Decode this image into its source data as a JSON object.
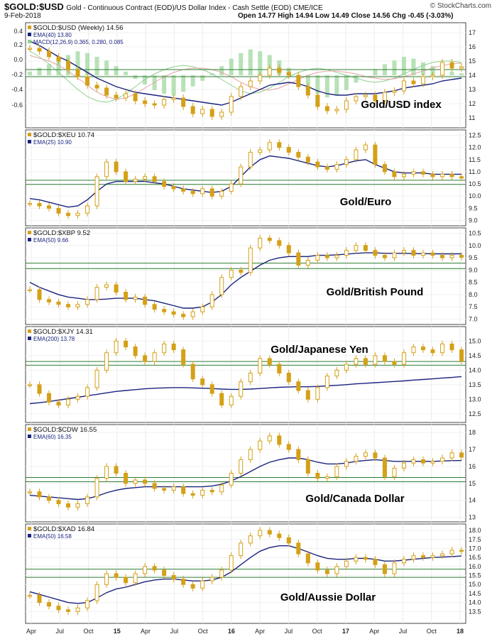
{
  "header": {
    "symbol": "$GOLD:$USD",
    "description": "Gold - Continuous Contract (EOD)/US Dollar Index - Cash Settle (EOD)  CME/ICE",
    "date": "9-Feb-2018",
    "ohlc": "Open 14.77  High 14.94  Low 14.49  Close 14.56  Chg -0.45 (-3.03%)",
    "credit": "© StockCharts.com"
  },
  "colors": {
    "price": "#d4a017",
    "ema": "#1a237e",
    "support": "#2e7d32",
    "macd_hist": "#9fd89f",
    "macd_line": "#8fcf8f",
    "macd_signal": "#e6a3a3"
  },
  "x_axis_labels": [
    "Apr",
    "Jul",
    "Oct",
    "15",
    "Apr",
    "Jul",
    "Oct",
    "16",
    "Apr",
    "Jul",
    "Oct",
    "17",
    "Apr",
    "Jul",
    "Oct",
    "18"
  ],
  "chart_data": [
    {
      "type": "line",
      "title": "Gold/USD index",
      "legend": [
        "$GOLD:$USD (Weekly) 14.56",
        "EMA(40) 13.80",
        "MACD(12,26,9) 0.365, 0.280, 0.085"
      ],
      "ylim": [
        10.5,
        17.5
      ],
      "y_ticks": [
        {
          "v": 17,
          "t": "17"
        },
        {
          "v": 16,
          "t": "16"
        },
        {
          "v": 15,
          "t": "15"
        },
        {
          "v": 14,
          "t": "14"
        },
        {
          "v": 13,
          "t": "13"
        },
        {
          "v": 12,
          "t": "12"
        },
        {
          "v": 11,
          "t": "11"
        }
      ],
      "left_ticks": [
        "0.4",
        "0.2",
        "0.0",
        "-0.2",
        "-0.4",
        "-0.6"
      ],
      "support": [
        14.4,
        13.9
      ],
      "price": [
        15.9,
        15.7,
        15.3,
        15.0,
        14.4,
        13.9,
        13.3,
        13.1,
        12.6,
        12.4,
        12.7,
        12.2,
        12.0,
        11.9,
        12.3,
        12.4,
        11.8,
        11.3,
        11.6,
        11.1,
        11.4,
        12.5,
        13.2,
        13.6,
        14.0,
        14.5,
        14.2,
        14.0,
        13.2,
        12.6,
        11.8,
        11.5,
        11.6,
        12.2,
        12.5,
        12.6,
        12.2,
        12.8,
        12.9,
        13.6,
        13.4,
        13.9,
        14.0,
        14.9,
        14.5,
        14.6
      ],
      "ema": [
        16.4,
        16.1,
        15.7,
        15.3,
        15.0,
        14.6,
        14.2,
        13.8,
        13.5,
        13.2,
        13.0,
        12.8,
        12.7,
        12.6,
        12.5,
        12.4,
        12.3,
        12.2,
        12.1,
        12.0,
        11.9,
        12.1,
        12.4,
        12.7,
        13.0,
        13.3,
        13.4,
        13.5,
        13.4,
        13.2,
        12.9,
        12.7,
        12.6,
        12.6,
        12.7,
        12.7,
        12.7,
        12.8,
        12.9,
        13.1,
        13.2,
        13.3,
        13.4,
        13.6,
        13.7,
        13.8
      ]
    },
    {
      "type": "line",
      "title": "Gold/Euro",
      "legend": [
        "$GOLD:$XEU 10.74",
        "EMA(25) 10.90"
      ],
      "ylim": [
        8.9,
        12.6
      ],
      "y_ticks": [
        {
          "v": 12.5,
          "t": "12.5"
        },
        {
          "v": 12.0,
          "t": "12.0"
        },
        {
          "v": 11.5,
          "t": "11.5"
        },
        {
          "v": 11.0,
          "t": "11.0"
        },
        {
          "v": 10.5,
          "t": "10.5"
        },
        {
          "v": 10.0,
          "t": "10.0"
        },
        {
          "v": 9.5,
          "t": "9.5"
        },
        {
          "v": 9.0,
          "t": "9.0"
        }
      ],
      "support": [
        10.65,
        10.48
      ],
      "price": [
        9.7,
        9.6,
        9.5,
        9.3,
        9.2,
        9.3,
        9.6,
        10.8,
        11.4,
        11.0,
        10.6,
        10.7,
        10.8,
        10.6,
        10.4,
        10.3,
        10.2,
        10.1,
        10.3,
        10.0,
        10.2,
        10.5,
        11.2,
        11.8,
        11.9,
        12.2,
        12.0,
        11.8,
        11.6,
        11.4,
        11.2,
        11.1,
        11.3,
        11.5,
        11.9,
        12.1,
        11.3,
        11.0,
        10.8,
        10.9,
        11.0,
        10.9,
        10.8,
        10.9,
        10.8,
        10.74
      ],
      "ema": [
        9.9,
        9.85,
        9.75,
        9.65,
        9.55,
        9.6,
        9.85,
        10.2,
        10.5,
        10.6,
        10.6,
        10.6,
        10.6,
        10.55,
        10.5,
        10.4,
        10.3,
        10.25,
        10.2,
        10.15,
        10.2,
        10.4,
        10.8,
        11.2,
        11.5,
        11.65,
        11.6,
        11.55,
        11.45,
        11.35,
        11.25,
        11.2,
        11.25,
        11.35,
        11.45,
        11.5,
        11.3,
        11.15,
        11.0,
        10.95,
        10.95,
        10.95,
        10.9,
        10.9,
        10.9,
        10.9
      ]
    },
    {
      "type": "line",
      "title": "Gold/British Pound",
      "legend": [
        "$GOLD:$XBP 9.52",
        "EMA(50) 9.66"
      ],
      "ylim": [
        6.9,
        10.6
      ],
      "y_ticks": [
        {
          "v": 10.5,
          "t": "10.5"
        },
        {
          "v": 10.0,
          "t": "10.0"
        },
        {
          "v": 9.5,
          "t": "9.5"
        },
        {
          "v": 9.0,
          "t": "9.0"
        },
        {
          "v": 8.5,
          "t": "8.5"
        },
        {
          "v": 8.0,
          "t": "8.0"
        },
        {
          "v": 7.5,
          "t": "7.5"
        },
        {
          "v": 7.0,
          "t": "7.0"
        }
      ],
      "support": [
        9.28,
        9.06
      ],
      "price": [
        8.2,
        7.8,
        7.7,
        7.6,
        7.5,
        7.6,
        7.8,
        8.3,
        8.4,
        8.1,
        7.8,
        7.9,
        7.6,
        7.4,
        7.3,
        7.2,
        7.1,
        7.3,
        7.5,
        8.0,
        8.7,
        9.0,
        8.9,
        9.9,
        10.3,
        10.2,
        10.0,
        9.7,
        9.2,
        9.4,
        9.6,
        9.5,
        9.6,
        9.8,
        10.0,
        9.8,
        9.6,
        9.5,
        9.7,
        9.8,
        9.6,
        9.7,
        9.6,
        9.5,
        9.6,
        9.52
      ],
      "ema": [
        8.5,
        8.3,
        8.15,
        8.0,
        7.9,
        7.85,
        7.8,
        7.8,
        7.82,
        7.85,
        7.85,
        7.85,
        7.8,
        7.75,
        7.65,
        7.55,
        7.45,
        7.45,
        7.5,
        7.7,
        8.0,
        8.4,
        8.7,
        8.95,
        9.2,
        9.4,
        9.5,
        9.55,
        9.55,
        9.55,
        9.6,
        9.6,
        9.62,
        9.65,
        9.68,
        9.7,
        9.7,
        9.68,
        9.68,
        9.68,
        9.67,
        9.67,
        9.66,
        9.66,
        9.66,
        9.66
      ]
    },
    {
      "type": "line",
      "title": "Gold/Japanese Yen",
      "legend": [
        "$GOLD:$XJY 14.31",
        "EMA(200) 13.78"
      ],
      "ylim": [
        12.3,
        15.4
      ],
      "y_ticks": [
        {
          "v": 15.0,
          "t": "15.0"
        },
        {
          "v": 14.5,
          "t": "14.5"
        },
        {
          "v": 14.0,
          "t": "14.0"
        },
        {
          "v": 13.5,
          "t": "13.5"
        },
        {
          "v": 13.0,
          "t": "13.0"
        },
        {
          "v": 12.5,
          "t": "12.5"
        }
      ],
      "support": [
        14.3,
        14.17
      ],
      "price": [
        13.5,
        13.2,
        12.9,
        12.8,
        13.0,
        13.1,
        13.4,
        14.0,
        14.6,
        15.0,
        14.8,
        14.5,
        14.3,
        14.6,
        14.9,
        14.7,
        14.2,
        13.7,
        13.5,
        13.2,
        12.8,
        13.1,
        13.6,
        13.9,
        14.4,
        14.2,
        13.9,
        13.6,
        13.3,
        13.0,
        13.4,
        13.8,
        14.0,
        14.2,
        14.4,
        14.2,
        14.5,
        14.3,
        14.2,
        14.6,
        14.8,
        14.7,
        14.6,
        14.9,
        14.7,
        14.31
      ],
      "ema": [
        12.85,
        12.88,
        12.92,
        12.97,
        13.02,
        13.07,
        13.12,
        13.17,
        13.22,
        13.27,
        13.3,
        13.33,
        13.36,
        13.38,
        13.39,
        13.4,
        13.4,
        13.39,
        13.38,
        13.37,
        13.35,
        13.34,
        13.34,
        13.35,
        13.37,
        13.39,
        13.41,
        13.42,
        13.43,
        13.43,
        13.44,
        13.46,
        13.48,
        13.5,
        13.53,
        13.55,
        13.57,
        13.59,
        13.61,
        13.63,
        13.66,
        13.68,
        13.7,
        13.73,
        13.75,
        13.78
      ]
    },
    {
      "type": "line",
      "title": "Gold/Canada Dollar",
      "legend": [
        "$GOLD:$CDW 16.55",
        "EMA(60) 16.35"
      ],
      "ylim": [
        12.9,
        18.3
      ],
      "y_ticks": [
        {
          "v": 18,
          "t": "18"
        },
        {
          "v": 17,
          "t": "17"
        },
        {
          "v": 16,
          "t": "16"
        },
        {
          "v": 15,
          "t": "15"
        },
        {
          "v": 14,
          "t": "14"
        },
        {
          "v": 13,
          "t": "13"
        }
      ],
      "support": [
        15.35,
        15.1
      ],
      "price": [
        14.5,
        14.2,
        14.0,
        13.8,
        13.6,
        13.8,
        14.2,
        15.3,
        16.0,
        15.6,
        15.0,
        15.2,
        15.0,
        14.7,
        14.6,
        14.8,
        14.4,
        14.3,
        14.6,
        14.5,
        14.9,
        15.6,
        16.4,
        17.0,
        17.5,
        17.8,
        17.3,
        17.0,
        16.4,
        15.6,
        15.3,
        15.4,
        16.0,
        16.3,
        16.6,
        16.8,
        16.5,
        15.4,
        15.9,
        16.2,
        16.4,
        16.2,
        16.3,
        16.5,
        16.8,
        16.55
      ],
      "ema": [
        14.3,
        14.25,
        14.2,
        14.15,
        14.1,
        14.05,
        14.1,
        14.25,
        14.45,
        14.6,
        14.7,
        14.75,
        14.8,
        14.8,
        14.8,
        14.8,
        14.8,
        14.8,
        14.8,
        14.85,
        14.95,
        15.15,
        15.4,
        15.7,
        16.0,
        16.25,
        16.4,
        16.5,
        16.5,
        16.4,
        16.25,
        16.15,
        16.15,
        16.2,
        16.3,
        16.35,
        16.4,
        16.35,
        16.3,
        16.3,
        16.3,
        16.3,
        16.3,
        16.32,
        16.34,
        16.35
      ]
    },
    {
      "type": "line",
      "title": "Gold/Aussie Dollar",
      "legend": [
        "$GOLD:$XAD 16.84",
        "EMA(50) 16.58"
      ],
      "ylim": [
        13.0,
        18.2
      ],
      "y_ticks": [
        {
          "v": 18.0,
          "t": "18.0"
        },
        {
          "v": 17.5,
          "t": "17.5"
        },
        {
          "v": 17.0,
          "t": "17.0"
        },
        {
          "v": 16.5,
          "t": "16.5"
        },
        {
          "v": 16.0,
          "t": "16.0"
        },
        {
          "v": 15.5,
          "t": "15.5"
        },
        {
          "v": 15.0,
          "t": "15.0"
        },
        {
          "v": 14.5,
          "t": "14.5"
        },
        {
          "v": 14.0,
          "t": "14.0"
        },
        {
          "v": 13.5,
          "t": "13.5"
        }
      ],
      "support": [
        15.85,
        15.4
      ],
      "price": [
        14.4,
        14.0,
        13.8,
        13.6,
        13.5,
        13.7,
        14.1,
        15.0,
        15.6,
        15.4,
        15.1,
        15.6,
        16.0,
        15.8,
        15.5,
        15.3,
        15.0,
        14.8,
        15.2,
        15.4,
        15.8,
        16.6,
        17.3,
        17.7,
        18.0,
        17.8,
        17.6,
        17.3,
        16.7,
        16.2,
        15.8,
        15.6,
        16.0,
        16.3,
        16.5,
        16.4,
        16.1,
        15.6,
        16.2,
        16.4,
        16.6,
        16.5,
        16.6,
        16.7,
        16.9,
        16.84
      ],
      "ema": [
        14.6,
        14.45,
        14.3,
        14.15,
        14.0,
        13.95,
        14.0,
        14.25,
        14.55,
        14.75,
        14.85,
        15.0,
        15.15,
        15.25,
        15.3,
        15.3,
        15.25,
        15.2,
        15.2,
        15.25,
        15.4,
        15.7,
        16.1,
        16.5,
        16.85,
        17.05,
        17.15,
        17.15,
        17.0,
        16.8,
        16.6,
        16.45,
        16.4,
        16.4,
        16.45,
        16.45,
        16.4,
        16.3,
        16.3,
        16.35,
        16.4,
        16.45,
        16.5,
        16.52,
        16.55,
        16.58
      ]
    }
  ]
}
